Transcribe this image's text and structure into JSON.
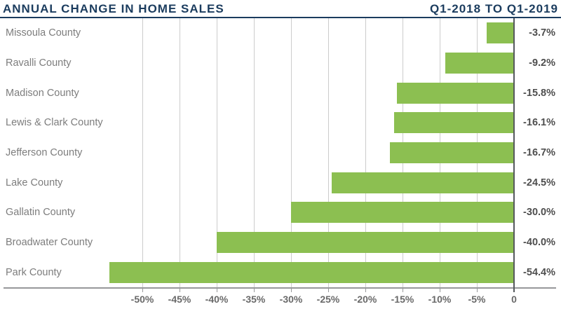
{
  "header": {
    "title_left": "ANNUAL CHANGE IN HOME SALES",
    "title_right": "Q1-2018 TO Q1-2019"
  },
  "chart_data": {
    "type": "bar",
    "orientation": "horizontal",
    "title": "ANNUAL CHANGE IN HOME SALES",
    "subtitle": "Q1-2018 TO Q1-2019",
    "categories": [
      "Missoula County",
      "Ravalli County",
      "Madison County",
      "Lewis & Clark County",
      "Jefferson County",
      "Lake County",
      "Gallatin County",
      "Broadwater County",
      "Park County"
    ],
    "values": [
      -3.7,
      -9.2,
      -15.8,
      -16.1,
      -16.7,
      -24.5,
      -30.0,
      -40.0,
      -54.4
    ],
    "data_labels": [
      "-3.7%",
      "-9.2%",
      "-15.8%",
      "-16.1%",
      "-16.7%",
      "-24.5%",
      "-30.0%",
      "-40.0%",
      "-54.4%"
    ],
    "x_tick_values": [
      -50,
      -45,
      -40,
      -35,
      -30,
      -25,
      -20,
      -15,
      -10,
      -5,
      0
    ],
    "x_tick_labels": [
      "-50%",
      "-45%",
      "-40%",
      "-35%",
      "-30%",
      "-25%",
      "-20%",
      "-15%",
      "-10%",
      "-5%",
      "0"
    ],
    "xlim": [
      -68.7,
      0
    ],
    "grid": true,
    "legend": false,
    "colors": {
      "bar": "#8CBF51",
      "title": "#1B3C5E",
      "gridline": "#CCCCCC",
      "zero_axis": "#55595C",
      "baseline": "#97989A",
      "category_label": "#7D7D7D",
      "value_label": "#4E4E4E",
      "tick_label": "#696969",
      "background": "#FFFFFF"
    }
  }
}
